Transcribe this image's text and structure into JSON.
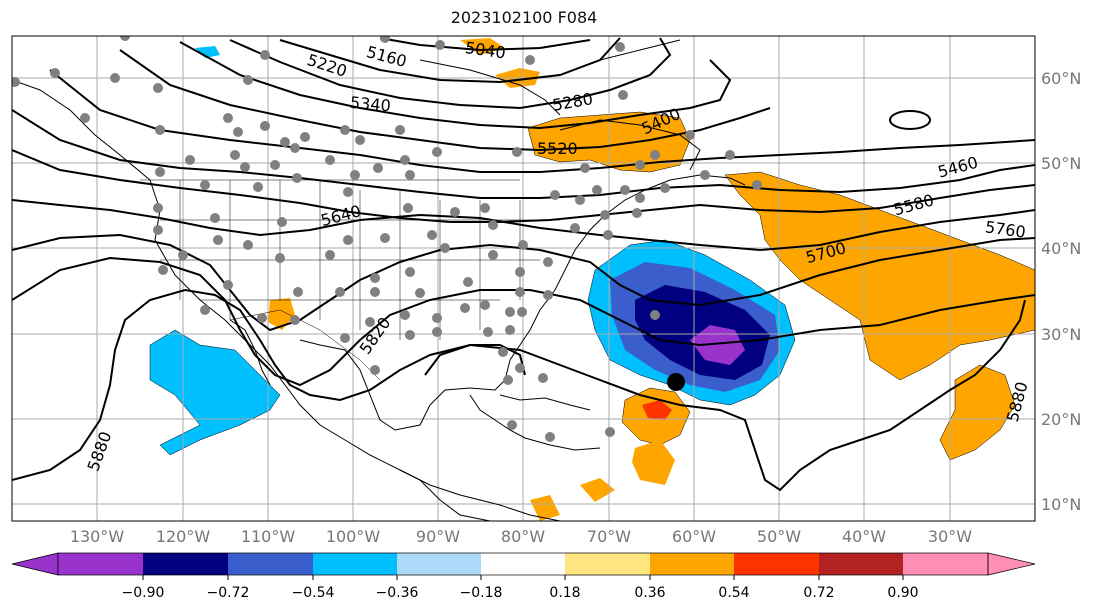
{
  "title": "2023102100 F084",
  "lat_labels": [
    "60°N",
    "50°N",
    "40°N",
    "30°N",
    "20°N",
    "10°N"
  ],
  "lon_labels": [
    "130°W",
    "120°W",
    "110°W",
    "100°W",
    "90°W",
    "80°W",
    "70°W",
    "60°W",
    "50°W",
    "40°W",
    "30°W"
  ],
  "contour_labels": [
    "5040",
    "5160",
    "5220",
    "5280",
    "5340",
    "5400",
    "5460",
    "5520",
    "5580",
    "5640",
    "5700",
    "5760",
    "5820",
    "5880",
    "5880"
  ],
  "colorbar": {
    "ticks": [
      "−0.90",
      "−0.72",
      "−0.54",
      "−0.36",
      "−0.18",
      "0.18",
      "0.36",
      "0.54",
      "0.72",
      "0.90"
    ],
    "colors": [
      "#9933cc",
      "#000080",
      "#3a5fcd",
      "#00bfff",
      "#add8f7",
      "#ffffff",
      "#ffe680",
      "#ffa500",
      "#ff3300",
      "#b22222",
      "#ff8fb4"
    ]
  },
  "colors": {
    "orange": "#ffa500",
    "red": "#ff3300",
    "lightblue": "#00bfff",
    "navy": "#000080",
    "blue": "#3a5fcd",
    "purple": "#9933cc"
  }
}
